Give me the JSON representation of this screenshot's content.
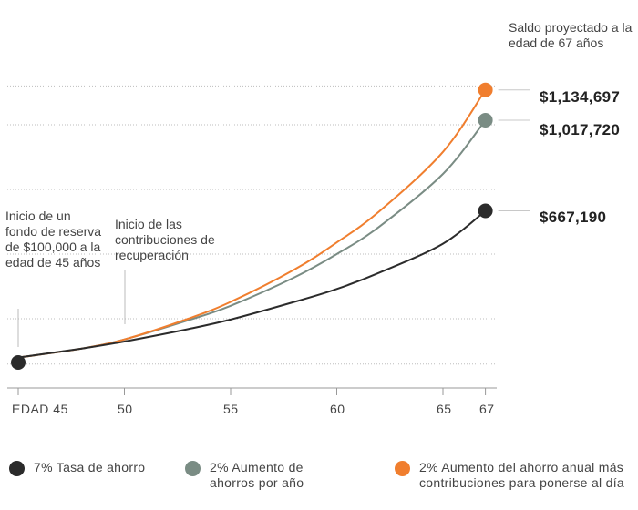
{
  "chart_data": {
    "type": "line",
    "x_ticks": [
      {
        "value": 45,
        "label": "EDAD 45"
      },
      {
        "value": 50,
        "label": "50"
      },
      {
        "value": 55,
        "label": "55"
      },
      {
        "value": 60,
        "label": "60"
      },
      {
        "value": 65,
        "label": "65"
      },
      {
        "value": 67,
        "label": "67"
      }
    ],
    "xlim": [
      45,
      67
    ],
    "ylim": [
      0,
      1250000
    ],
    "grid": true,
    "series": [
      {
        "name": "7% Tasa de ahorro",
        "color": "#2b2b2b",
        "x": [
          45,
          48,
          50,
          53,
          55,
          58,
          60,
          62,
          65,
          67
        ],
        "y": [
          100000,
          135000,
          162000,
          210000,
          247000,
          315000,
          365000,
          428000,
          540000,
          667190
        ],
        "end_label": "$667,190"
      },
      {
        "name": "2% Aumento de ahorros por año",
        "color": "#7a8c84",
        "x": [
          45,
          48,
          50,
          53,
          55,
          58,
          60,
          62,
          65,
          67
        ],
        "y": [
          100000,
          135000,
          170000,
          244000,
          300000,
          410000,
          500000,
          606000,
          810000,
          1017720
        ],
        "end_label": "$1,017,720"
      },
      {
        "name": "2% Aumento del ahorro anual más contribuciones para ponerse al día",
        "color": "#f07e2e",
        "x": [
          45,
          48,
          50,
          53,
          55,
          58,
          60,
          62,
          65,
          67
        ],
        "y": [
          100000,
          135000,
          170000,
          250000,
          315000,
          440000,
          545000,
          665000,
          895000,
          1134697
        ],
        "end_label": "$1,134,697"
      }
    ],
    "annotations": {
      "start": "Inicio de un fondo de reserva de $100,000 a la edad de 45 años",
      "catchup": "Inicio de las contribuciones de recuperación",
      "projected": "Saldo proyectado a la edad de 67 años"
    }
  }
}
